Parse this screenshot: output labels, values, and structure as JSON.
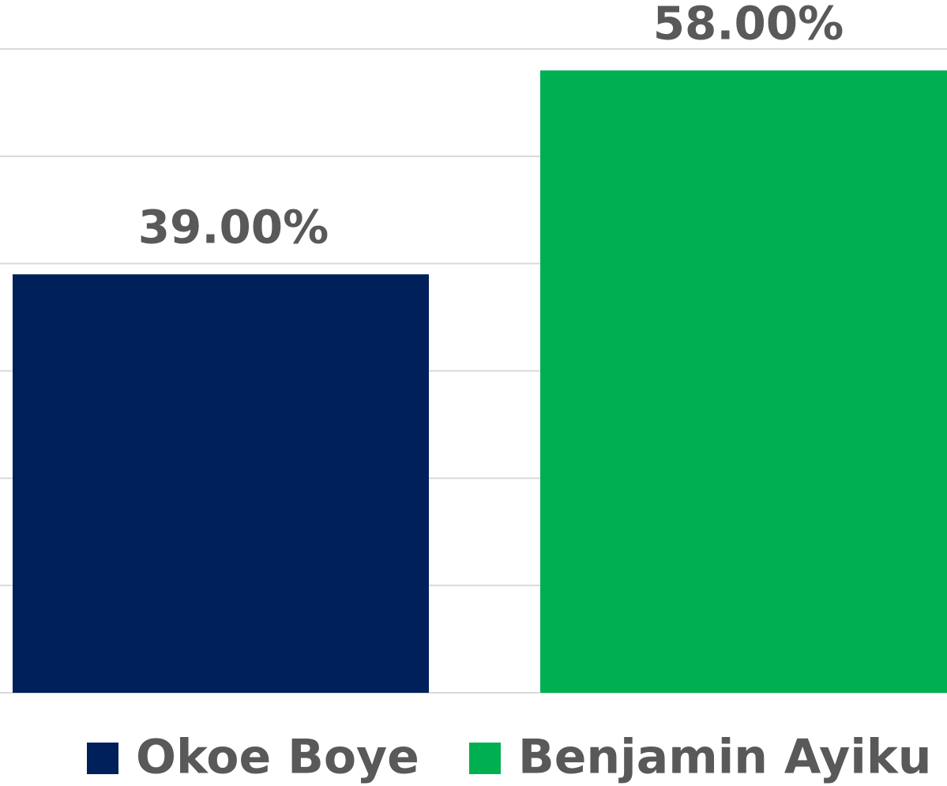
{
  "chart_data": {
    "type": "bar",
    "categories": [
      null
    ],
    "series": [
      {
        "name": "Okoe Boye",
        "color": "#00205b",
        "values": [
          39
        ],
        "value_labels": [
          "39.00%"
        ]
      },
      {
        "name": "Benjamin Ayiku",
        "color": "#00b050",
        "values": [
          58
        ],
        "value_labels": [
          "58.00%"
        ]
      }
    ],
    "ylim": [
      0,
      60
    ],
    "yticks": [
      0,
      10,
      20,
      30,
      40,
      50,
      60
    ],
    "grid": true
  }
}
